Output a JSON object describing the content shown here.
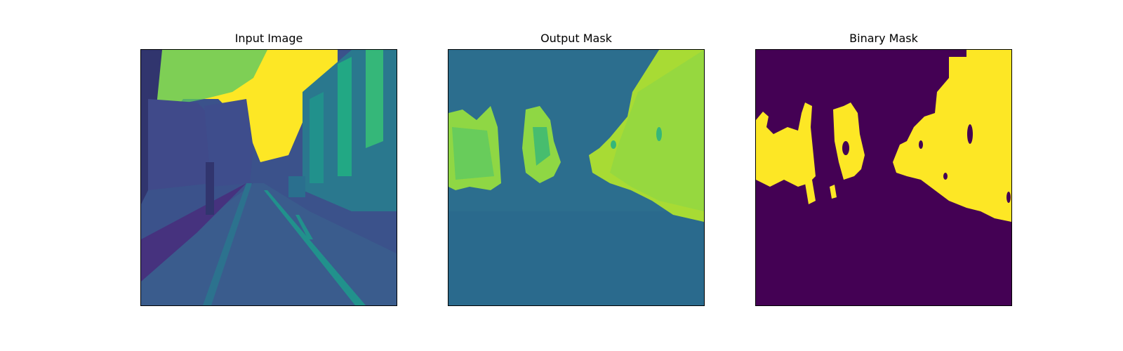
{
  "figure": {
    "panels": [
      {
        "title": "Input Image",
        "colormap": "viridis"
      },
      {
        "title": "Output Mask",
        "colormap": "viridis"
      },
      {
        "title": "Binary Mask",
        "colormap": "viridis"
      }
    ]
  },
  "colors": {
    "viridis_low": "#440154",
    "viridis_mid_low": "#3b528b",
    "viridis_mid": "#21918c",
    "viridis_mid_high": "#5ec962",
    "viridis_high": "#fde725"
  }
}
